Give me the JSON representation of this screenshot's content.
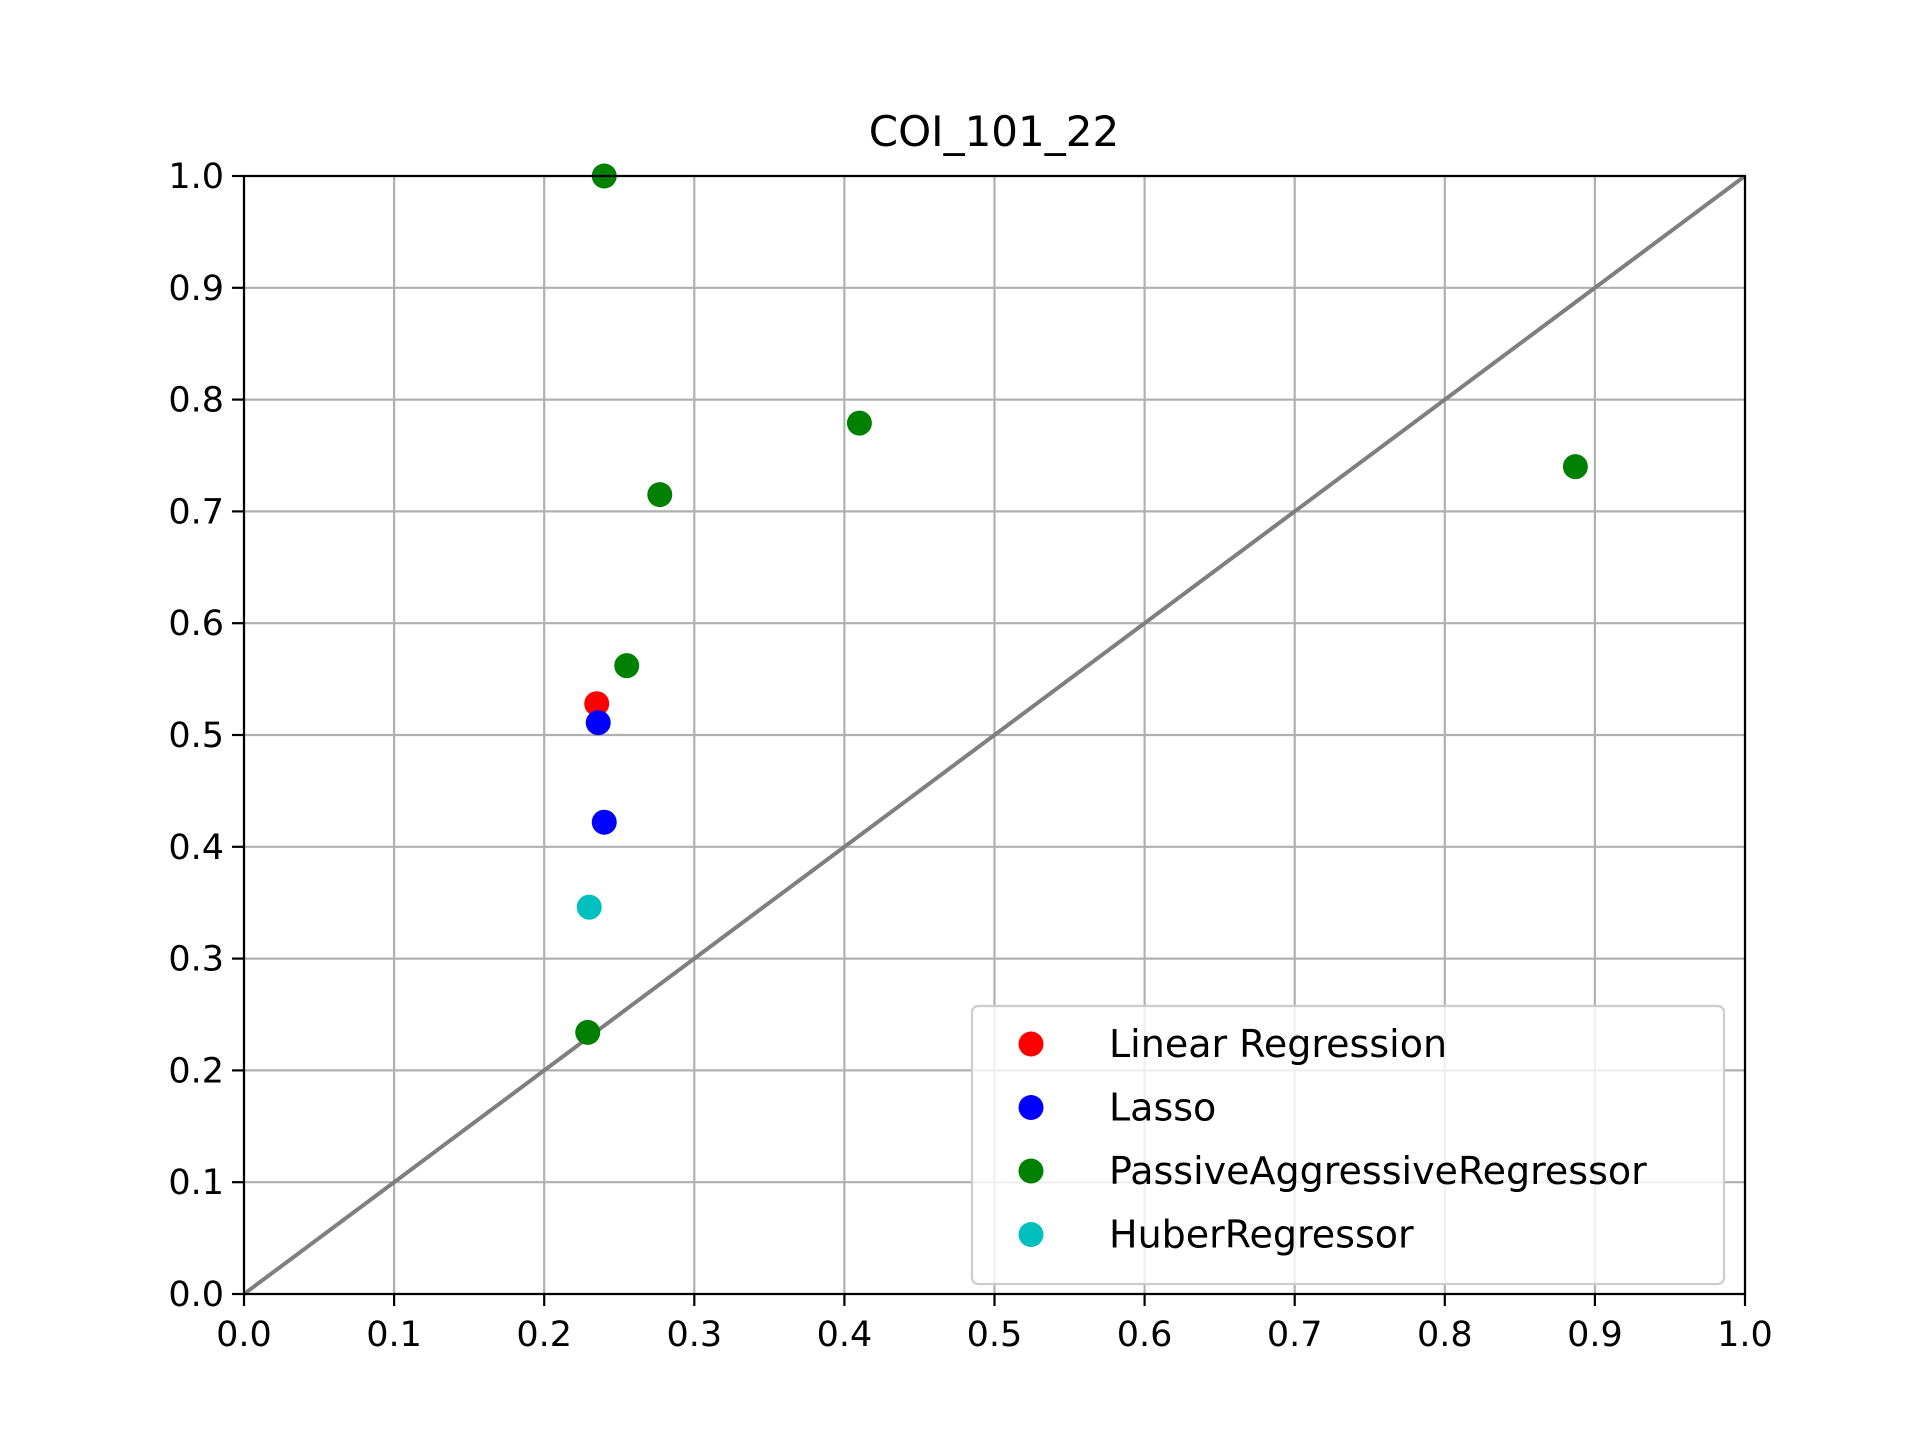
{
  "chart_data": {
    "type": "scatter",
    "title": "COI_101_22",
    "xlabel": "",
    "ylabel": "",
    "xlim": [
      0.0,
      1.0
    ],
    "ylim": [
      0.0,
      1.0
    ],
    "x_ticks": [
      "0.0",
      "0.1",
      "0.2",
      "0.3",
      "0.4",
      "0.5",
      "0.6",
      "0.7",
      "0.8",
      "0.9",
      "1.0"
    ],
    "y_ticks": [
      "0.0",
      "0.1",
      "0.2",
      "0.3",
      "0.4",
      "0.5",
      "0.6",
      "0.7",
      "0.8",
      "0.9",
      "1.0"
    ],
    "grid": true,
    "legend_position": "lower-right",
    "reference_line": {
      "from": [
        0.0,
        0.0
      ],
      "to": [
        1.0,
        1.0
      ],
      "color": "#7f7f7f"
    },
    "series": [
      {
        "name": "Linear Regression",
        "color": "#ff0000",
        "points": [
          [
            0.235,
            0.528
          ]
        ]
      },
      {
        "name": "Lasso",
        "color": "#0000ff",
        "points": [
          [
            0.236,
            0.511
          ],
          [
            0.24,
            0.422
          ]
        ]
      },
      {
        "name": "PassiveAggressiveRegressor",
        "color": "#008000",
        "points": [
          [
            0.24,
            1.0
          ],
          [
            0.41,
            0.779
          ],
          [
            0.277,
            0.715
          ],
          [
            0.887,
            0.74
          ],
          [
            0.255,
            0.562
          ],
          [
            0.229,
            0.234
          ]
        ]
      },
      {
        "name": "HuberRegressor",
        "color": "#00bfbf",
        "points": [
          [
            0.23,
            0.346
          ]
        ]
      }
    ]
  }
}
